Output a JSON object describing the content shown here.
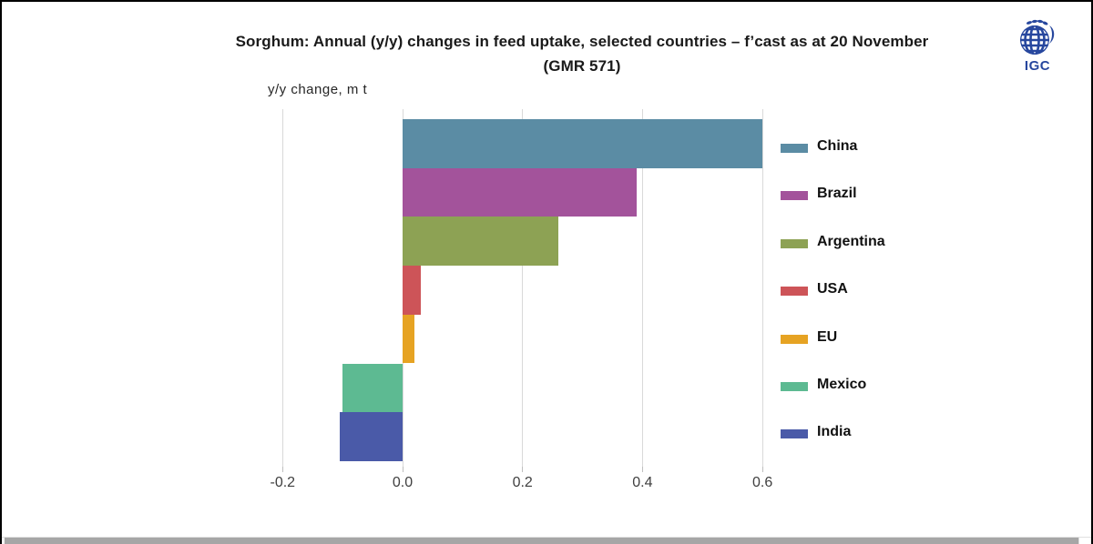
{
  "title": {
    "line1": "Sorghum: Annual (y/y) changes in feed uptake, selected countries – f’cast as at 20 November",
    "line2": "(GMR 571)"
  },
  "axis": {
    "unit_label": "y/y change, m t",
    "ticks": [
      "-0.2",
      "0.0",
      "0.2",
      "0.4",
      "0.6"
    ],
    "tick_values": [
      -0.2,
      0.0,
      0.2,
      0.4,
      0.6
    ]
  },
  "logo": {
    "text": "IGC",
    "color": "#27479e"
  },
  "chart_data": {
    "type": "bar",
    "orientation": "horizontal",
    "title": "Sorghum: Annual (y/y) changes in feed uptake, selected countries – f’cast as at 20 November (GMR 571)",
    "xlabel": "y/y change, m t",
    "xlim": [
      -0.23,
      0.62
    ],
    "xticks": [
      -0.2,
      0.0,
      0.2,
      0.4,
      0.6
    ],
    "grid": true,
    "legend_position": "right",
    "categories": [
      "China",
      "Brazil",
      "Argentina",
      "USA",
      "EU",
      "Mexico",
      "India"
    ],
    "values": [
      0.6,
      0.39,
      0.26,
      0.03,
      0.02,
      -0.1,
      -0.105
    ],
    "colors": [
      "#5b8ca4",
      "#a3539b",
      "#8da254",
      "#cd5458",
      "#e6a323",
      "#5dba92",
      "#4a5aa8"
    ]
  }
}
